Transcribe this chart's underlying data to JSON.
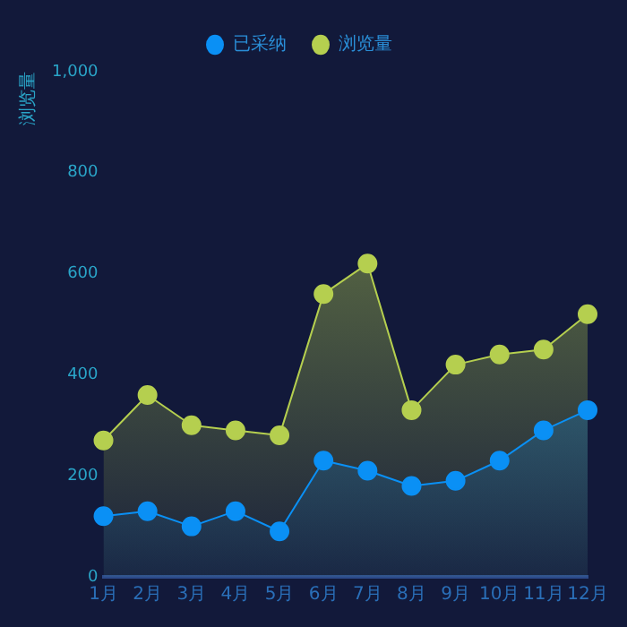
{
  "chart_data": {
    "type": "area",
    "ylabel": "浏览量",
    "categories": [
      "1月",
      "2月",
      "3月",
      "4月",
      "5月",
      "6月",
      "7月",
      "8月",
      "9月",
      "10月",
      "11月",
      "12月"
    ],
    "series": [
      {
        "name": "已采纳",
        "color": "#0a90f5",
        "values": [
          120,
          130,
          100,
          130,
          90,
          230,
          210,
          180,
          190,
          230,
          290,
          330
        ]
      },
      {
        "name": "浏览量",
        "color": "#b5cf4f",
        "values": [
          270,
          360,
          300,
          290,
          280,
          560,
          620,
          330,
          420,
          440,
          450,
          520
        ]
      }
    ],
    "ylim": [
      0,
      1000
    ],
    "yticks": [
      0,
      200,
      400,
      600,
      800,
      {
        "value": 1000,
        "label": "1,000"
      }
    ],
    "grid": false,
    "legend": "top",
    "marker": "circle"
  }
}
